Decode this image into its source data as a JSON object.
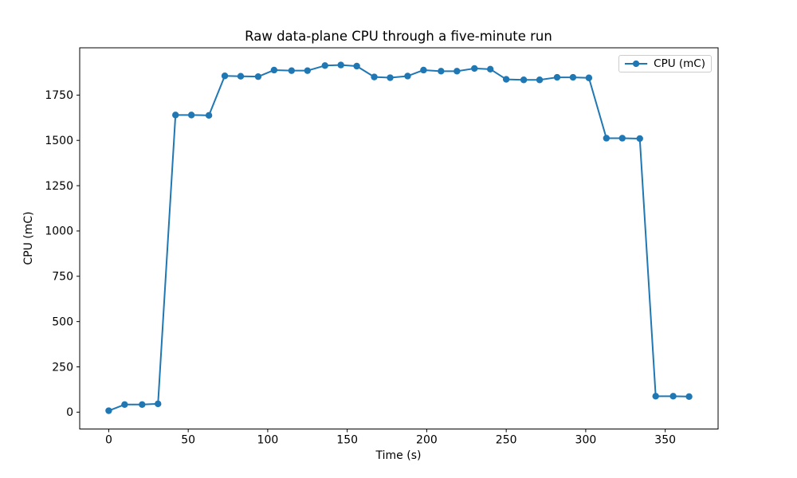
{
  "chart_data": {
    "type": "line",
    "title": "Raw data-plane CPU through a five-minute run",
    "xlabel": "Time (s)",
    "ylabel": "CPU (mC)",
    "grid": false,
    "legend_position": "upper right",
    "legend": [
      {
        "label": "CPU (mC)",
        "color": "#1f77b4",
        "marker": "circle"
      }
    ],
    "xlim": [
      -18.25,
      383.25
    ],
    "ylim": [
      -93,
      2011
    ],
    "x_ticks": [
      0,
      50,
      100,
      150,
      200,
      250,
      300,
      350
    ],
    "y_ticks": [
      0,
      250,
      500,
      750,
      1000,
      1250,
      1500,
      1750
    ],
    "series": [
      {
        "name": "CPU (mC)",
        "color": "#1f77b4",
        "marker": "circle",
        "x": [
          0,
          10,
          21,
          31,
          42,
          52,
          63,
          73,
          83,
          94,
          104,
          115,
          125,
          136,
          146,
          156,
          167,
          177,
          188,
          198,
          209,
          219,
          230,
          240,
          250,
          261,
          271,
          282,
          292,
          302,
          313,
          323,
          334,
          344,
          355,
          365
        ],
        "y": [
          8,
          42,
          42,
          46,
          1640,
          1640,
          1638,
          1856,
          1854,
          1852,
          1888,
          1885,
          1885,
          1913,
          1916,
          1910,
          1850,
          1846,
          1855,
          1888,
          1882,
          1882,
          1897,
          1893,
          1837,
          1834,
          1834,
          1848,
          1848,
          1845,
          1512,
          1512,
          1510,
          88,
          88,
          86
        ]
      }
    ]
  },
  "axis_style": {
    "spine_color": "#000000",
    "tick_color": "#000000",
    "tick_label_color": "#000000",
    "background": "#ffffff"
  }
}
